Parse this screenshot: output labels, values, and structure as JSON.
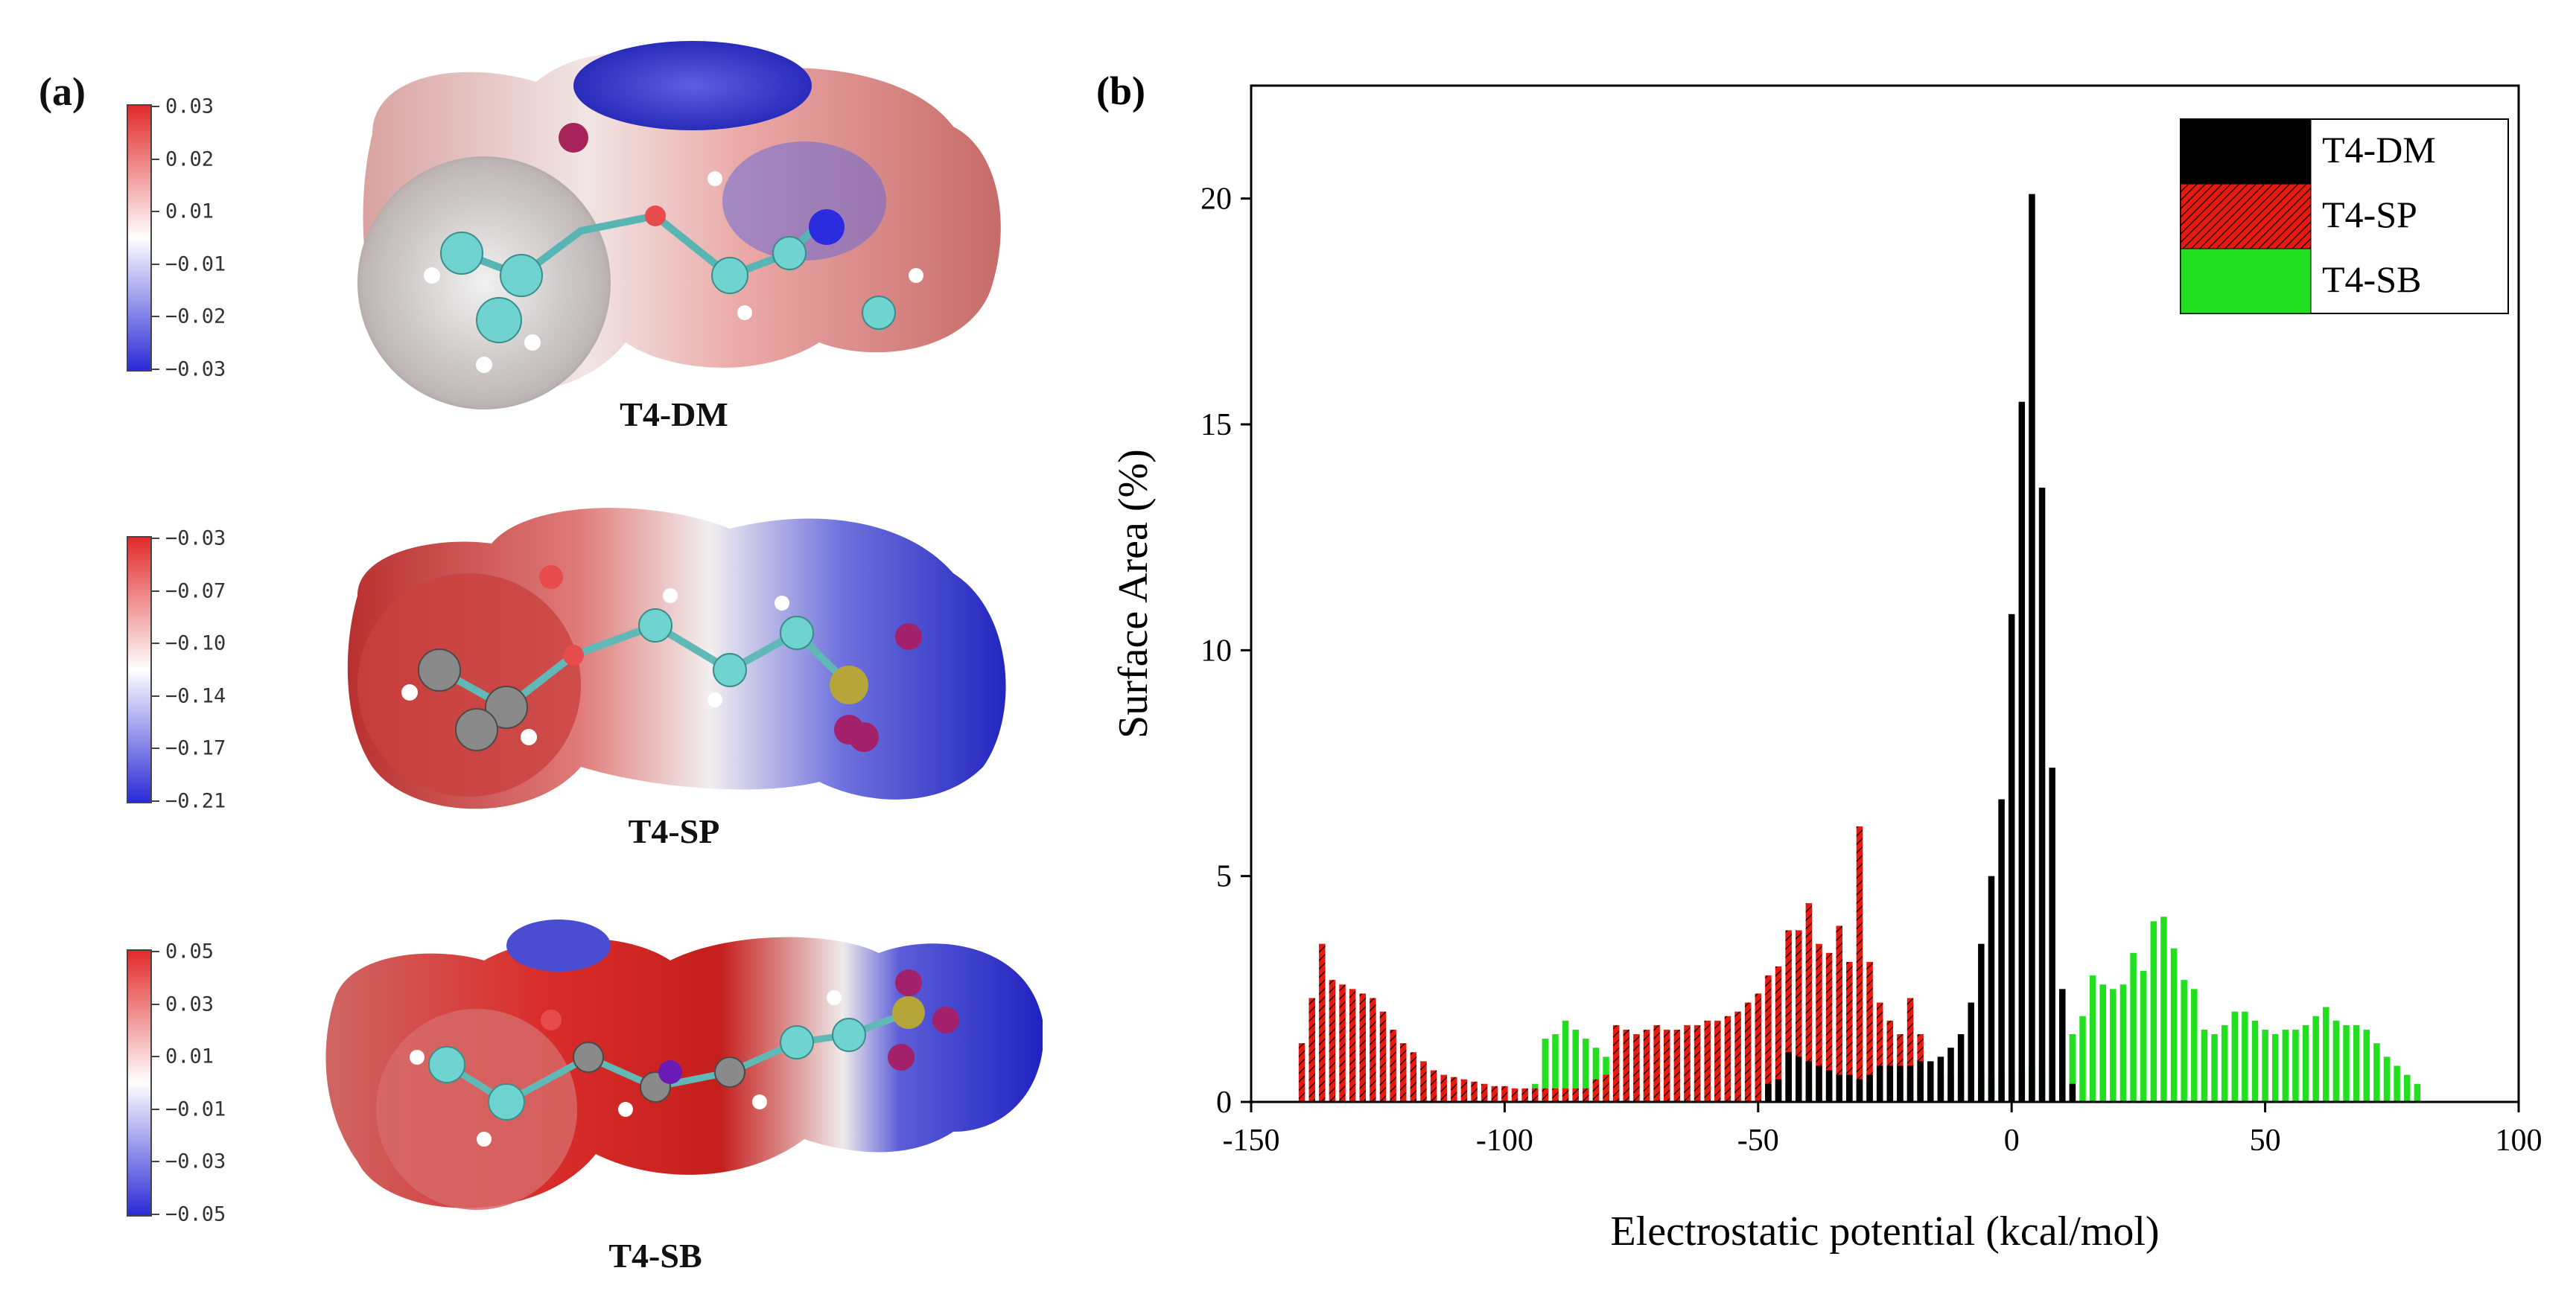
{
  "panel_a": {
    "label": "(a)",
    "molecules": [
      {
        "name": "T4-DM",
        "colorbar_ticks": [
          "0.03",
          "0.02",
          "0.01",
          "−0.01",
          "−0.02",
          "−0.03"
        ]
      },
      {
        "name": "T4-SP",
        "colorbar_ticks": [
          "−0.03",
          "−0.07",
          "−0.10",
          "−0.14",
          "−0.17",
          "−0.21"
        ]
      },
      {
        "name": "T4-SB",
        "colorbar_ticks": [
          "0.05",
          "0.03",
          "0.01",
          "−0.01",
          "−0.03",
          "−0.05"
        ]
      }
    ]
  },
  "panel_b": {
    "label": "(b)"
  },
  "colors": {
    "T4-DM": "#000000",
    "T4-SP": "#e8190f",
    "T4-SB": "#22e01f",
    "positive": "#e23a3a",
    "negative": "#2a2ad8"
  },
  "chart_data": {
    "type": "bar",
    "title": "",
    "xlabel": "Electrostatic potential (kcal/mol)",
    "ylabel": "Surface Area (%)",
    "xlim": [
      -150,
      100
    ],
    "ylim": [
      0,
      22.5
    ],
    "xticks": [
      -150,
      -100,
      -50,
      0,
      50,
      100
    ],
    "yticks": [
      0,
      5,
      10,
      15,
      20
    ],
    "grid": false,
    "legend_position": "top-right",
    "series": [
      {
        "name": "T4-SB",
        "x": [
          -94,
          -92,
          -90,
          -88,
          -86,
          -84,
          -82,
          -80,
          -78,
          -76,
          -74,
          -72,
          -70,
          -68,
          -66,
          -64,
          -62,
          -60,
          -58,
          -56,
          -54,
          -52,
          -50,
          -48,
          -46,
          -44,
          -42,
          -40,
          -38,
          -36,
          -34,
          -32,
          -30,
          -28,
          -26,
          -24,
          -22,
          -20,
          -18,
          -16,
          -14,
          -12,
          -10,
          -8,
          -6,
          -4,
          -2,
          0,
          2,
          4,
          6,
          8,
          10,
          12,
          14,
          16,
          18,
          20,
          22,
          24,
          26,
          28,
          30,
          32,
          34,
          36,
          38,
          40,
          42,
          44,
          46,
          48,
          50,
          52,
          54,
          56,
          58,
          60,
          62,
          64,
          66,
          68,
          70,
          72,
          74,
          76,
          78,
          80
        ],
        "values": [
          0.4,
          1.4,
          1.5,
          1.8,
          1.6,
          1.4,
          1.2,
          1.0,
          0.9,
          0.8,
          0.7,
          0.6,
          0.6,
          0.5,
          0.5,
          0.45,
          0.4,
          0.4,
          0.38,
          0.35,
          0.33,
          0.32,
          0.3,
          0.3,
          0.3,
          0.3,
          0.3,
          0.3,
          0.3,
          0.3,
          0.3,
          0.32,
          0.35,
          0.4,
          0.4,
          0.45,
          0.5,
          0.55,
          0.6,
          0.6,
          0.6,
          0.6,
          0.6,
          0.6,
          0.6,
          0.6,
          0.65,
          0.7,
          0.7,
          0.8,
          0.9,
          1.0,
          1.2,
          1.5,
          1.9,
          2.8,
          2.6,
          2.5,
          2.6,
          3.3,
          2.9,
          4.0,
          4.1,
          3.4,
          2.7,
          2.5,
          1.6,
          1.5,
          1.7,
          2.0,
          2.0,
          1.8,
          1.6,
          1.5,
          1.6,
          1.6,
          1.7,
          1.9,
          2.1,
          1.8,
          1.7,
          1.7,
          1.6,
          1.3,
          1.0,
          0.8,
          0.6,
          0.4
        ]
      },
      {
        "name": "T4-SP",
        "x": [
          -140,
          -138,
          -136,
          -134,
          -132,
          -130,
          -128,
          -126,
          -124,
          -122,
          -120,
          -118,
          -116,
          -114,
          -112,
          -110,
          -108,
          -106,
          -104,
          -102,
          -100,
          -98,
          -96,
          -94,
          -92,
          -90,
          -88,
          -86,
          -84,
          -82,
          -80,
          -78,
          -76,
          -74,
          -72,
          -70,
          -68,
          -66,
          -64,
          -62,
          -60,
          -58,
          -56,
          -54,
          -52,
          -50,
          -48,
          -46,
          -44,
          -42,
          -40,
          -38,
          -36,
          -34,
          -32,
          -30,
          -28,
          -26,
          -24,
          -22,
          -20,
          -18
        ],
        "values": [
          1.3,
          2.3,
          3.5,
          2.7,
          2.6,
          2.5,
          2.4,
          2.3,
          2.0,
          1.6,
          1.3,
          1.1,
          0.9,
          0.7,
          0.6,
          0.55,
          0.5,
          0.45,
          0.4,
          0.35,
          0.35,
          0.3,
          0.3,
          0.3,
          0.3,
          0.3,
          0.3,
          0.3,
          0.3,
          0.5,
          0.6,
          1.7,
          1.6,
          1.5,
          1.6,
          1.7,
          1.6,
          1.6,
          1.7,
          1.7,
          1.8,
          1.8,
          1.9,
          2.0,
          2.2,
          2.4,
          2.8,
          3.0,
          3.8,
          3.8,
          4.4,
          3.5,
          3.3,
          3.9,
          3.1,
          6.1,
          3.1,
          2.2,
          1.8,
          1.5,
          2.3,
          1.5
        ]
      },
      {
        "name": "T4-DM",
        "x": [
          -48,
          -46,
          -44,
          -42,
          -40,
          -38,
          -36,
          -34,
          -32,
          -30,
          -28,
          -26,
          -24,
          -22,
          -20,
          -18,
          -16,
          -14,
          -12,
          -10,
          -8,
          -6,
          -4,
          -2,
          0,
          2,
          4,
          6,
          8,
          10,
          12
        ],
        "values": [
          0.4,
          0.5,
          1.1,
          1.0,
          0.9,
          0.8,
          0.7,
          0.6,
          0.6,
          0.5,
          0.6,
          0.8,
          0.8,
          0.8,
          0.8,
          0.9,
          0.9,
          1.0,
          1.2,
          1.5,
          2.2,
          3.5,
          5.0,
          6.7,
          10.8,
          15.5,
          20.1,
          13.6,
          7.4,
          2.5,
          0.4
        ]
      }
    ]
  }
}
